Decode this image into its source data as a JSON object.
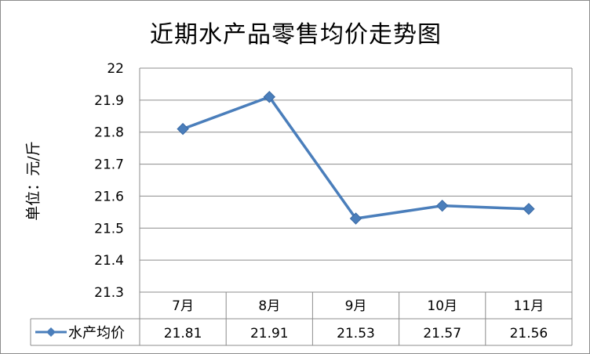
{
  "chart_data": {
    "type": "line",
    "title": "近期水产品零售均价走势图",
    "ylabel": "单位：元/斤",
    "xlabel": "",
    "categories": [
      "7月",
      "8月",
      "9月",
      "10月",
      "11月"
    ],
    "series": [
      {
        "name": "水产均价",
        "values": [
          21.81,
          21.91,
          21.53,
          21.57,
          21.56
        ],
        "value_labels": [
          "21.81",
          "21.91",
          "21.53",
          "21.57",
          "21.56"
        ]
      }
    ],
    "ylim": [
      21.3,
      22
    ],
    "yticks": [
      "21.3",
      "21.4",
      "21.5",
      "21.6",
      "21.7",
      "21.8",
      "21.9",
      "22"
    ],
    "grid": true,
    "legend": "data-table-left",
    "data_table": true,
    "colors": {
      "series": "#4a7ebb",
      "grid": "#8c8c8c"
    }
  }
}
